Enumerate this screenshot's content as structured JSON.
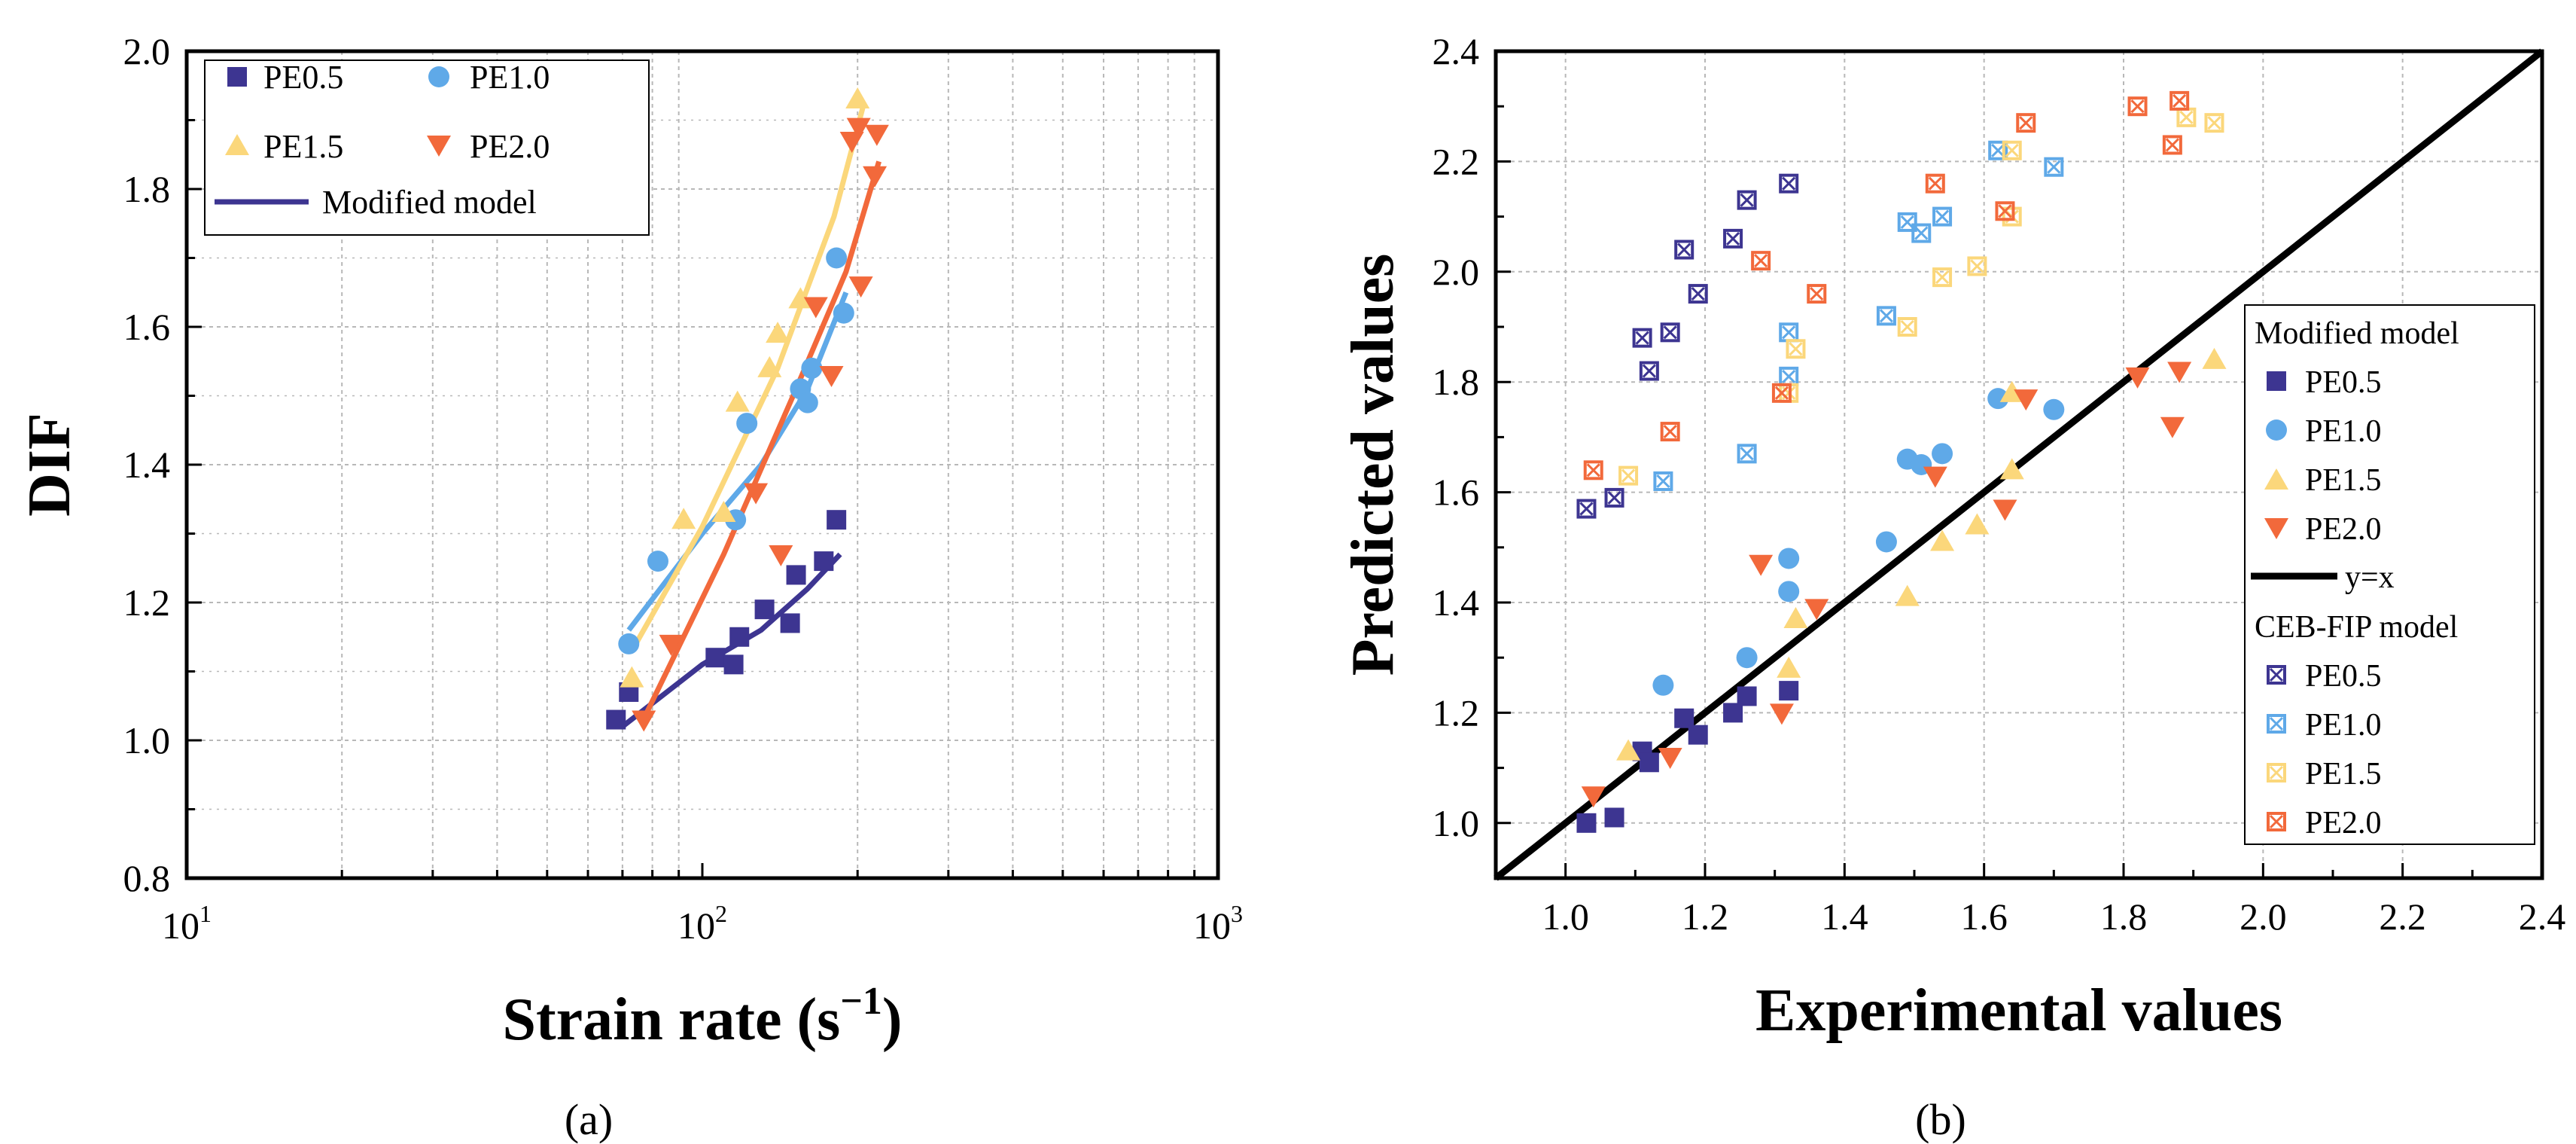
{
  "colors": {
    "pe05": "#3D3591",
    "pe10": "#5FA9E8",
    "pe15": "#FBD77B",
    "pe20": "#F2693B",
    "identity": "#000000",
    "grid": "#b8b8b8"
  },
  "panels": [
    {
      "label": "(a)"
    },
    {
      "label": "(b)"
    }
  ],
  "chart_data": [
    {
      "type": "scatter",
      "panel": "(a)",
      "xscale": "log",
      "xlabel": "Strain rate (s",
      "xlabel_sup": "−1",
      "xlabel_close": ")",
      "ylabel": "DIF",
      "xlim": [
        10,
        1000
      ],
      "ylim": [
        0.8,
        2.0
      ],
      "xtick_bases": [
        "10",
        "10",
        "10"
      ],
      "xtick_exps": [
        "1",
        "2",
        "3"
      ],
      "xtick_values": [
        10,
        100,
        1000
      ],
      "yticks": [
        0.8,
        1.0,
        1.2,
        1.4,
        1.6,
        1.8,
        2.0
      ],
      "ytick_labels": [
        "0.8",
        "1.0",
        "1.2",
        "1.4",
        "1.6",
        "1.8",
        "2.0"
      ],
      "grid": true,
      "legend_position": "top-left",
      "legend": {
        "pe05": "PE0.5",
        "pe10": "PE1.0",
        "pe15": "PE1.5",
        "pe20": "PE2.0",
        "model": "Modified model"
      },
      "series": [
        {
          "name": "PE0.5",
          "marker": "square",
          "color_key": "pe05",
          "x": [
            68,
            72,
            106,
            115,
            118,
            132,
            148,
            152,
            172,
            182
          ],
          "y": [
            1.03,
            1.07,
            1.12,
            1.11,
            1.15,
            1.19,
            1.17,
            1.24,
            1.26,
            1.32
          ]
        },
        {
          "name": "PE1.0",
          "marker": "circle",
          "color_key": "pe10",
          "x": [
            72,
            82,
            116,
            122,
            155,
            160,
            163,
            182,
            188
          ],
          "y": [
            1.14,
            1.26,
            1.32,
            1.46,
            1.51,
            1.49,
            1.54,
            1.7,
            1.62
          ]
        },
        {
          "name": "PE1.5",
          "marker": "triangle-up",
          "color_key": "pe15",
          "x": [
            73,
            92,
            110,
            117,
            135,
            140,
            155,
            200
          ],
          "y": [
            1.09,
            1.32,
            1.33,
            1.49,
            1.54,
            1.59,
            1.64,
            1.93
          ]
        },
        {
          "name": "PE2.0",
          "marker": "triangle-down",
          "color_key": "pe20",
          "x": [
            77,
            87,
            127,
            142,
            166,
            178,
            195,
            201,
            203,
            216,
            218
          ],
          "y": [
            1.03,
            1.14,
            1.36,
            1.27,
            1.63,
            1.53,
            1.87,
            1.89,
            1.66,
            1.82,
            1.88
          ]
        }
      ],
      "fit_lines": [
        {
          "name": "PE0.5 model",
          "color_key": "pe05",
          "x": [
            70,
            100,
            130,
            160,
            185
          ],
          "y": [
            1.02,
            1.11,
            1.16,
            1.22,
            1.27
          ]
        },
        {
          "name": "PE1.0 model",
          "color_key": "pe10",
          "x": [
            72,
            100,
            130,
            160,
            190
          ],
          "y": [
            1.16,
            1.3,
            1.4,
            1.51,
            1.65
          ]
        },
        {
          "name": "PE1.5 model",
          "color_key": "pe15",
          "x": [
            73,
            100,
            140,
            180,
            205
          ],
          "y": [
            1.13,
            1.31,
            1.54,
            1.76,
            1.92
          ]
        },
        {
          "name": "PE2.0 model",
          "color_key": "pe20",
          "x": [
            78,
            110,
            150,
            190,
            220
          ],
          "y": [
            1.04,
            1.27,
            1.5,
            1.68,
            1.84
          ]
        }
      ]
    },
    {
      "type": "scatter",
      "panel": "(b)",
      "xlabel": "Experimental values",
      "ylabel": "Predicted values",
      "xlim": [
        0.9,
        2.4
      ],
      "ylim": [
        0.9,
        2.4
      ],
      "xticks": [
        1.0,
        1.2,
        1.4,
        1.6,
        1.8,
        2.0,
        2.2,
        2.4
      ],
      "xtick_labels": [
        "1.0",
        "1.2",
        "1.4",
        "1.6",
        "1.8",
        "2.0",
        "2.2",
        "2.4"
      ],
      "yticks": [
        1.0,
        1.2,
        1.4,
        1.6,
        1.8,
        2.0,
        2.2,
        2.4
      ],
      "ytick_labels": [
        "1.0",
        "1.2",
        "1.4",
        "1.6",
        "1.8",
        "2.0",
        "2.2",
        "2.4"
      ],
      "grid": true,
      "legend_position": "right",
      "legend": {
        "group_modified": "Modified model",
        "pe05": "PE0.5",
        "pe10": "PE1.0",
        "pe15": "PE1.5",
        "pe20": "PE2.0",
        "identity": "y=x",
        "group_ceb": "CEB-FIP model",
        "ceb_pe05": "PE0.5",
        "ceb_pe10": "PE1.0",
        "ceb_pe15": "PE1.5",
        "ceb_pe20": "PE2.0"
      },
      "identity_line": {
        "x": [
          0.9,
          2.4
        ],
        "y": [
          0.9,
          2.4
        ]
      },
      "modified_model": [
        {
          "name": "PE0.5",
          "marker": "square",
          "color_key": "pe05",
          "x": [
            1.03,
            1.07,
            1.11,
            1.12,
            1.17,
            1.19,
            1.24,
            1.26,
            1.32
          ],
          "y": [
            1.0,
            1.01,
            1.13,
            1.11,
            1.19,
            1.16,
            1.2,
            1.23,
            1.24
          ]
        },
        {
          "name": "PE1.0",
          "marker": "circle",
          "color_key": "pe10",
          "x": [
            1.14,
            1.26,
            1.32,
            1.32,
            1.46,
            1.49,
            1.51,
            1.54,
            1.62,
            1.7
          ],
          "y": [
            1.25,
            1.3,
            1.48,
            1.42,
            1.51,
            1.66,
            1.65,
            1.67,
            1.77,
            1.75
          ]
        },
        {
          "name": "PE1.5",
          "marker": "triangle-up",
          "color_key": "pe15",
          "x": [
            1.09,
            1.32,
            1.33,
            1.49,
            1.54,
            1.59,
            1.64,
            1.64,
            1.93
          ],
          "y": [
            1.13,
            1.28,
            1.37,
            1.41,
            1.51,
            1.54,
            1.64,
            1.78,
            1.84
          ]
        },
        {
          "name": "PE2.0",
          "marker": "triangle-down",
          "color_key": "pe20",
          "x": [
            1.04,
            1.15,
            1.28,
            1.31,
            1.36,
            1.53,
            1.63,
            1.66,
            1.82,
            1.87,
            1.88
          ],
          "y": [
            1.05,
            1.12,
            1.47,
            1.2,
            1.39,
            1.63,
            1.57,
            1.77,
            1.81,
            1.72,
            1.82
          ]
        }
      ],
      "ceb_fip_model": [
        {
          "name": "PE0.5",
          "marker": "square-x",
          "color_key": "pe05",
          "x": [
            1.03,
            1.07,
            1.11,
            1.12,
            1.15,
            1.17,
            1.19,
            1.24,
            1.26,
            1.32
          ],
          "y": [
            1.57,
            1.59,
            1.88,
            1.82,
            1.89,
            2.04,
            1.96,
            2.06,
            2.13,
            2.16
          ]
        },
        {
          "name": "PE1.0",
          "marker": "square-x",
          "color_key": "pe10",
          "x": [
            1.14,
            1.26,
            1.32,
            1.32,
            1.46,
            1.49,
            1.51,
            1.54,
            1.62,
            1.7
          ],
          "y": [
            1.62,
            1.67,
            1.81,
            1.89,
            1.92,
            2.09,
            2.07,
            2.1,
            2.22,
            2.19
          ]
        },
        {
          "name": "PE1.5",
          "marker": "square-x",
          "color_key": "pe15",
          "x": [
            1.09,
            1.32,
            1.33,
            1.49,
            1.54,
            1.59,
            1.64,
            1.64,
            1.89,
            1.93
          ],
          "y": [
            1.63,
            1.78,
            1.86,
            1.9,
            1.99,
            2.01,
            2.1,
            2.22,
            2.28,
            2.27
          ]
        },
        {
          "name": "PE2.0",
          "marker": "square-x",
          "color_key": "pe20",
          "x": [
            1.04,
            1.15,
            1.28,
            1.31,
            1.36,
            1.53,
            1.63,
            1.66,
            1.82,
            1.87,
            1.88
          ],
          "y": [
            1.64,
            1.71,
            2.02,
            1.78,
            1.96,
            2.16,
            2.11,
            2.27,
            2.3,
            2.23,
            2.31
          ]
        }
      ]
    }
  ]
}
